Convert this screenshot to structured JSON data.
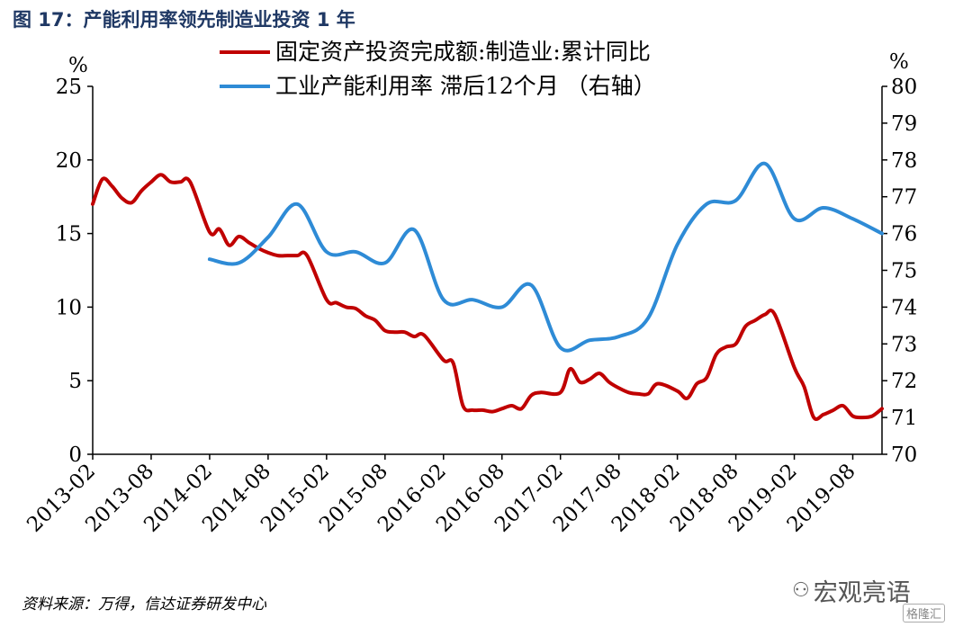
{
  "figure": {
    "title": "图 17：产能利用率领先制造业投资 1 年",
    "source": "资料来源：万得，信达证券研发中心",
    "watermark": "宏观亮语",
    "watermark_badge": "格隆汇"
  },
  "chart_data": {
    "type": "line",
    "left_axis_unit": "%",
    "right_axis_unit": "%",
    "y_left": {
      "min": 0,
      "max": 25,
      "ticks": [
        0,
        5,
        10,
        15,
        20,
        25
      ]
    },
    "y_right": {
      "min": 70,
      "max": 80,
      "ticks": [
        70,
        71,
        72,
        73,
        74,
        75,
        76,
        77,
        78,
        79,
        80
      ]
    },
    "x_ticks": [
      "2013-02",
      "2013-08",
      "2014-02",
      "2014-08",
      "2015-02",
      "2015-08",
      "2016-02",
      "2016-08",
      "2017-02",
      "2017-08",
      "2018-02",
      "2018-08",
      "2019-02",
      "2019-08"
    ],
    "legend_position": "top-center",
    "colors": {
      "series1": "#c00000",
      "series2": "#2e8bd6"
    },
    "series": [
      {
        "name": "固定资产投资完成额:制造业:累计同比",
        "axis": "left",
        "x": [
          "2013-02",
          "2013-03",
          "2013-04",
          "2013-05",
          "2013-06",
          "2013-07",
          "2013-08",
          "2013-09",
          "2013-10",
          "2013-11",
          "2013-12",
          "2014-02",
          "2014-03",
          "2014-04",
          "2014-05",
          "2014-06",
          "2014-07",
          "2014-08",
          "2014-09",
          "2014-10",
          "2014-11",
          "2014-12",
          "2015-02",
          "2015-03",
          "2015-04",
          "2015-05",
          "2015-06",
          "2015-07",
          "2015-08",
          "2015-09",
          "2015-10",
          "2015-11",
          "2015-12",
          "2016-02",
          "2016-03",
          "2016-04",
          "2016-05",
          "2016-06",
          "2016-07",
          "2016-08",
          "2016-09",
          "2016-10",
          "2016-11",
          "2016-12",
          "2017-02",
          "2017-03",
          "2017-04",
          "2017-05",
          "2017-06",
          "2017-07",
          "2017-08",
          "2017-09",
          "2017-10",
          "2017-11",
          "2017-12",
          "2018-02",
          "2018-03",
          "2018-04",
          "2018-05",
          "2018-06",
          "2018-07",
          "2018-08",
          "2018-09",
          "2018-10",
          "2018-11",
          "2018-12",
          "2019-02",
          "2019-03",
          "2019-04",
          "2019-05",
          "2019-06",
          "2019-07",
          "2019-08",
          "2019-09",
          "2019-10",
          "2019-11"
        ],
        "values": [
          17.0,
          18.7,
          18.2,
          17.4,
          17.1,
          17.9,
          18.5,
          19.0,
          18.5,
          18.5,
          18.5,
          15.1,
          15.3,
          14.2,
          14.8,
          14.4,
          14.0,
          13.7,
          13.5,
          13.5,
          13.5,
          13.5,
          10.5,
          10.3,
          10.0,
          9.9,
          9.4,
          9.1,
          8.4,
          8.3,
          8.3,
          8.0,
          8.1,
          6.4,
          6.2,
          3.3,
          3.0,
          3.0,
          2.9,
          3.1,
          3.3,
          3.1,
          4.0,
          4.2,
          4.2,
          5.8,
          4.9,
          5.1,
          5.5,
          4.9,
          4.5,
          4.2,
          4.1,
          4.1,
          4.8,
          4.3,
          3.8,
          4.8,
          5.2,
          6.8,
          7.3,
          7.5,
          8.7,
          9.1,
          9.5,
          9.5,
          5.9,
          4.6,
          2.5,
          2.7,
          3.0,
          3.3,
          2.6,
          2.5,
          2.6,
          3.1
        ]
      },
      {
        "name": "工业产能利用率 滞后12个月 （右轴）",
        "axis": "right",
        "x": [
          "2014-02",
          "2014-05",
          "2014-08",
          "2014-11",
          "2015-02",
          "2015-05",
          "2015-08",
          "2015-11",
          "2016-02",
          "2016-05",
          "2016-08",
          "2016-11",
          "2017-02",
          "2017-05",
          "2017-08",
          "2017-11",
          "2018-02",
          "2018-05",
          "2018-08",
          "2018-11",
          "2019-02",
          "2019-05",
          "2019-08",
          "2019-11"
        ],
        "values": [
          75.3,
          75.2,
          75.9,
          76.8,
          75.5,
          75.5,
          75.2,
          76.1,
          74.2,
          74.2,
          74.0,
          74.6,
          72.9,
          73.1,
          73.2,
          73.7,
          75.7,
          76.8,
          76.9,
          77.9,
          76.4,
          76.7,
          76.4,
          76.0
        ]
      }
    ]
  }
}
